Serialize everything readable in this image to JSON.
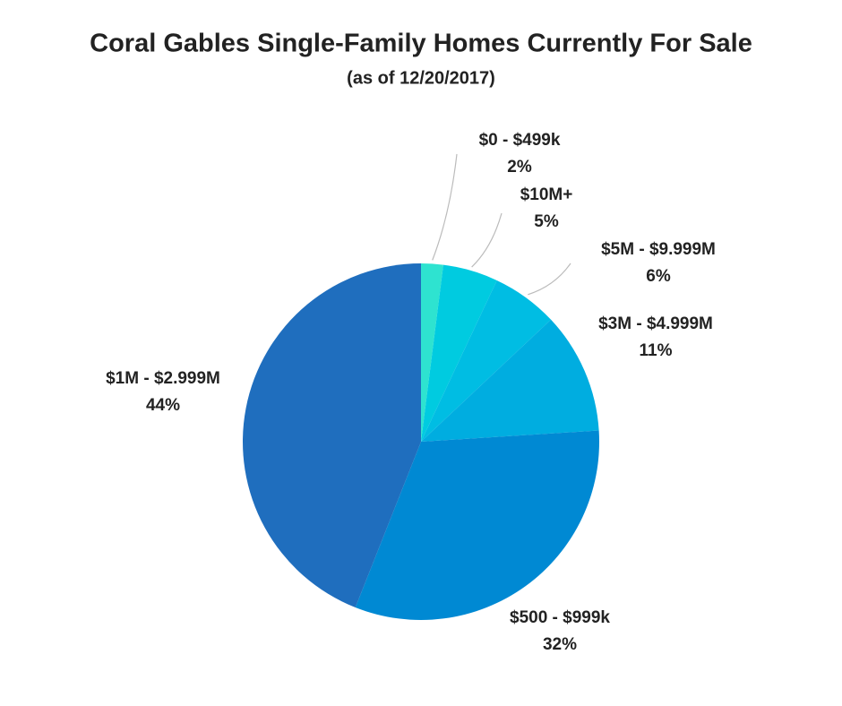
{
  "chart_data": {
    "type": "pie",
    "title": "Coral Gables Single-Family Homes Currently For Sale",
    "subtitle": "(as of 12/20/2017)",
    "categories": [
      "$0 - $499k",
      "$10M+",
      "$5M - $9.999M",
      "$3M - $4.999M",
      "$500 - $999k",
      "$1M - $2.999M"
    ],
    "values": [
      2,
      5,
      6,
      11,
      32,
      44
    ],
    "value_labels": [
      "2%",
      "5%",
      "6%",
      "11%",
      "32%",
      "44%"
    ],
    "colors": [
      "#2ee3d0",
      "#00cbe0",
      "#00bde3",
      "#00ade0",
      "#0089d3",
      "#1f6ebe"
    ]
  }
}
